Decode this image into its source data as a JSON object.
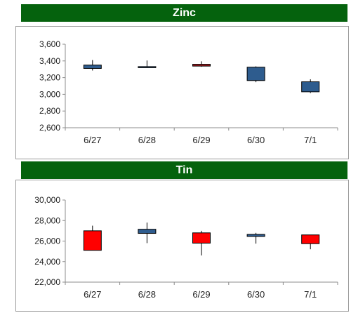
{
  "colors": {
    "banner": "#05620d",
    "banner_text": "#ffffff",
    "up": "#2e5c8e",
    "down": "#ff0000",
    "dark_red": "#a0171c",
    "axis": "#8c8c8c"
  },
  "chart_data": [
    {
      "type": "candlestick",
      "title": "Zinc",
      "categories": [
        "6/27",
        "6/28",
        "6/29",
        "6/30",
        "7/1"
      ],
      "y_ticks": [
        "3,600",
        "3,400",
        "3,200",
        "3,000",
        "2,800",
        "2,600"
      ],
      "ylim": [
        2600,
        3600
      ],
      "y_tick_step": 200,
      "grid": false,
      "candles": [
        {
          "open": 3310,
          "close": 3350,
          "high": 3410,
          "low": 3285,
          "color": "#2e5c8e"
        },
        {
          "open": 3328,
          "close": 3332,
          "high": 3405,
          "low": 3325,
          "color": "#2e5c8e"
        },
        {
          "open": 3360,
          "close": 3338,
          "high": 3395,
          "low": 3330,
          "color": "#a0171c"
        },
        {
          "open": 3165,
          "close": 3325,
          "high": 3335,
          "low": 3145,
          "color": "#2e5c8e"
        },
        {
          "open": 3030,
          "close": 3150,
          "high": 3180,
          "low": 3015,
          "color": "#2e5c8e"
        }
      ]
    },
    {
      "type": "candlestick",
      "title": "Tin",
      "categories": [
        "6/27",
        "6/28",
        "6/29",
        "6/30",
        "7/1"
      ],
      "y_ticks": [
        "30,000",
        "28,000",
        "26,000",
        "24,000",
        "22,000"
      ],
      "ylim": [
        22000,
        30000
      ],
      "y_tick_step": 2000,
      "grid": false,
      "candles": [
        {
          "open": 27000,
          "close": 25100,
          "high": 27500,
          "low": 25100,
          "color": "#ff0000"
        },
        {
          "open": 26750,
          "close": 27150,
          "high": 27800,
          "low": 25800,
          "color": "#2e5c8e"
        },
        {
          "open": 26800,
          "close": 25800,
          "high": 27000,
          "low": 24600,
          "color": "#ff0000"
        },
        {
          "open": 26450,
          "close": 26650,
          "high": 26800,
          "low": 25750,
          "color": "#2e5c8e"
        },
        {
          "open": 26600,
          "close": 25750,
          "high": 26600,
          "low": 25200,
          "color": "#ff0000"
        }
      ]
    }
  ]
}
